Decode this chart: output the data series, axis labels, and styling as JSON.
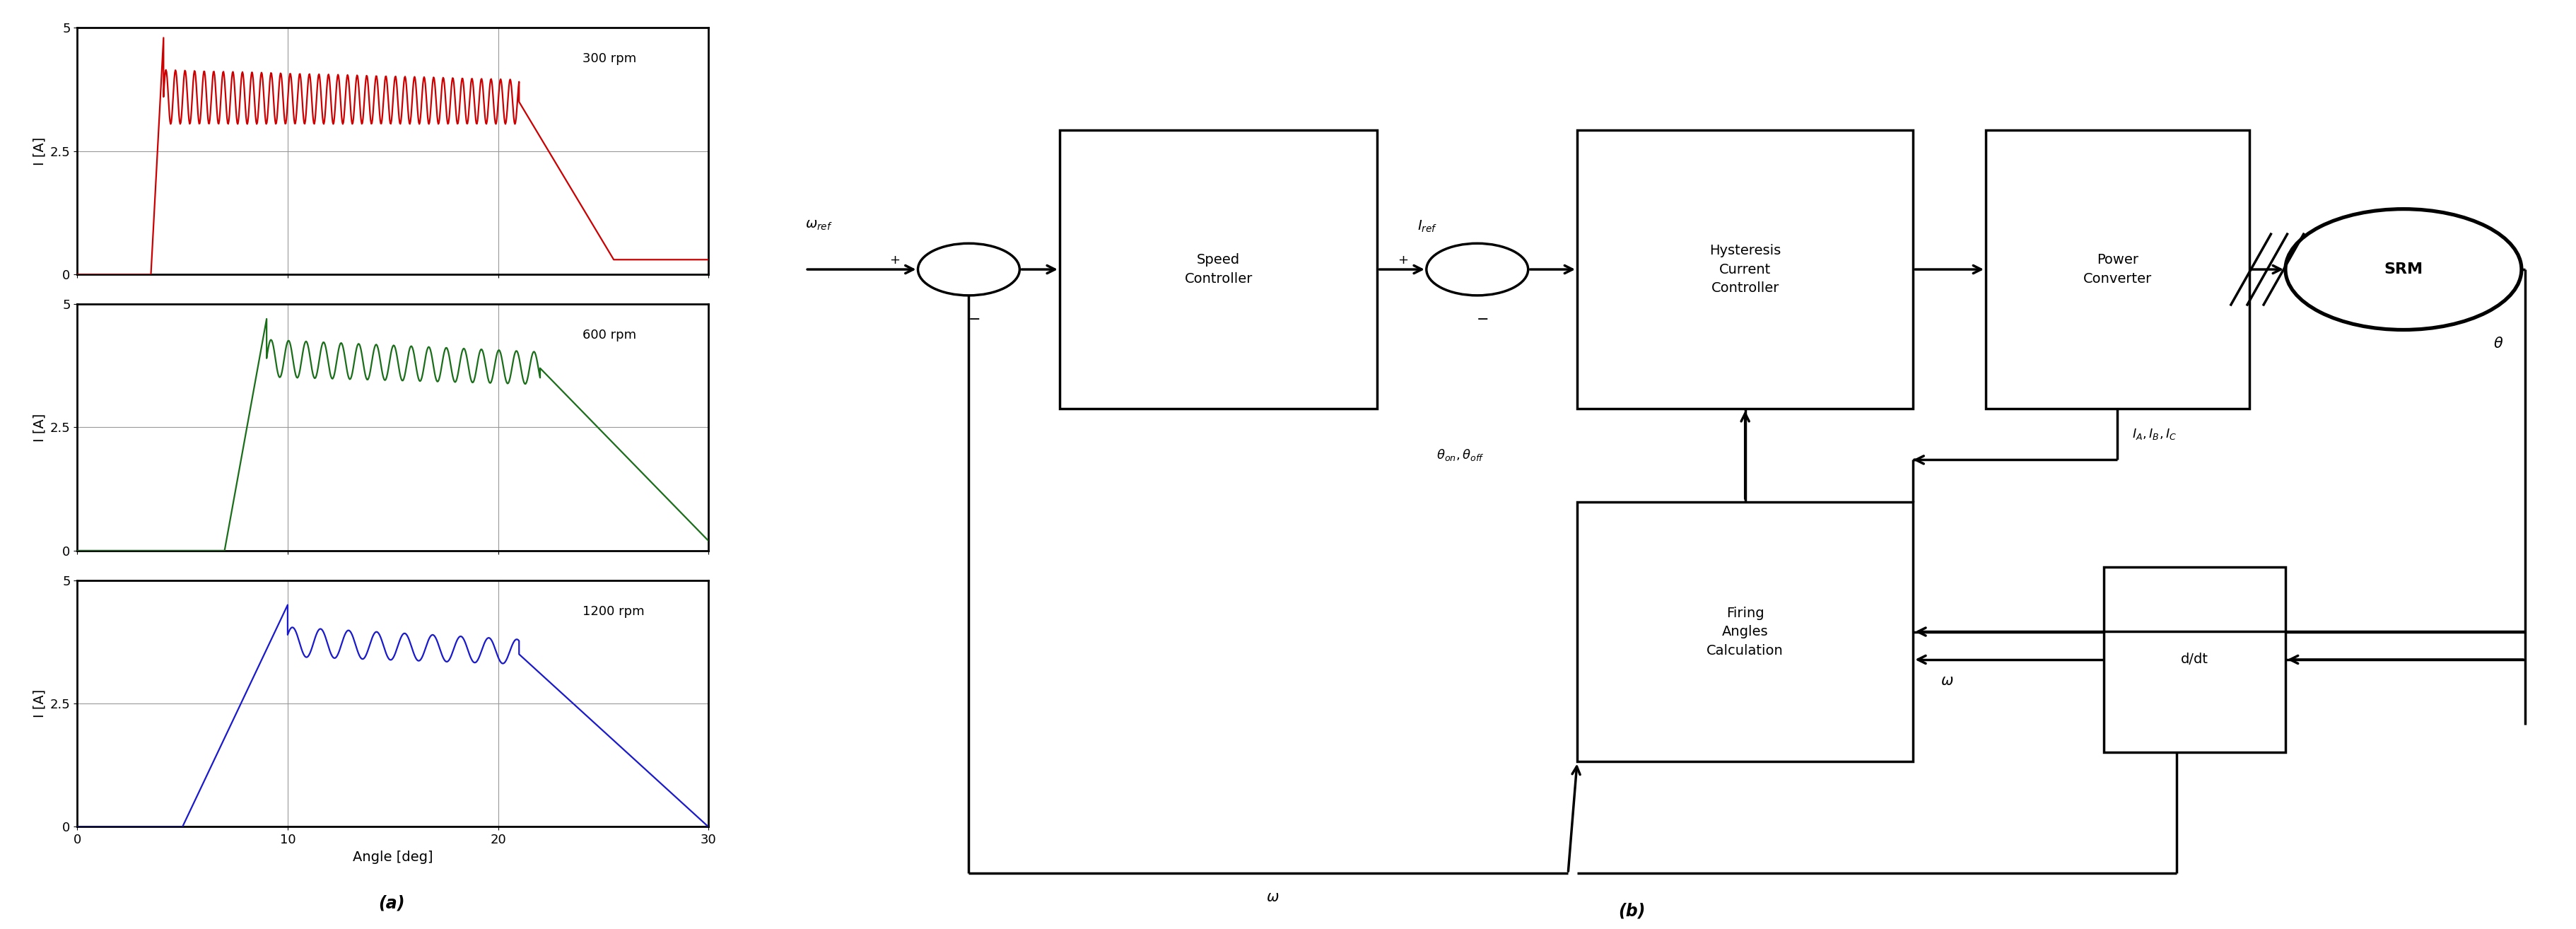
{
  "fig_width": 36.44,
  "fig_height": 13.14,
  "subplot_colors": [
    "#cc0000",
    "#1a6e1a",
    "#1a1acc"
  ],
  "subplot_labels": [
    "300 rpm",
    "600 rpm",
    "1200 rpm"
  ],
  "ylim": [
    0,
    5
  ],
  "yticks": [
    0,
    2.5,
    5
  ],
  "xlim": [
    0,
    30
  ],
  "xticks": [
    0,
    10,
    20,
    30
  ],
  "xlabel": "Angle [deg]",
  "ylabel": "I [A]",
  "panel_label_a": "(a)",
  "panel_label_b": "(b)",
  "bg_color": "#ffffff",
  "grid_color": "#999999"
}
